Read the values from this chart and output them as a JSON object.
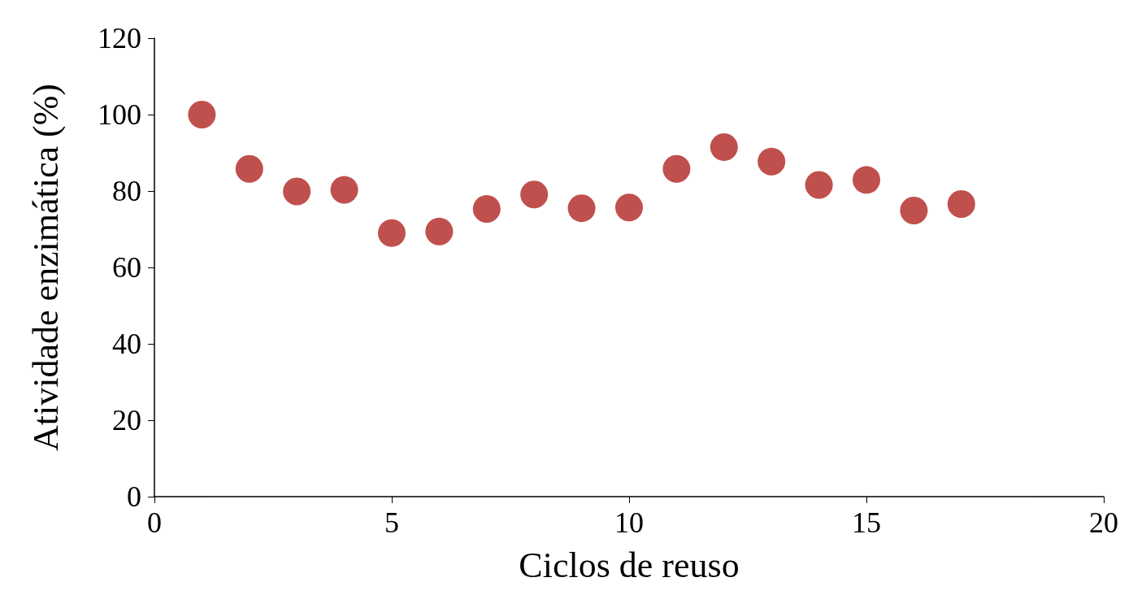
{
  "chart_data": {
    "type": "scatter",
    "xlabel": "Ciclos de reuso",
    "ylabel": "Atividade enzimática (%)",
    "x": [
      1,
      2,
      3,
      4,
      5,
      6,
      7,
      8,
      9,
      10,
      11,
      12,
      13,
      14,
      15,
      16,
      17
    ],
    "series": [
      {
        "color": "#c0504d",
        "values": [
          100,
          85.8,
          79.9,
          80.3,
          69.0,
          69.4,
          75.3,
          79.1,
          75.5,
          75.7,
          85.8,
          91.5,
          87.7,
          81.6,
          82.9,
          74.9,
          76.6
        ]
      }
    ],
    "xlim": [
      0,
      20
    ],
    "xticks": [
      0,
      5,
      10,
      15,
      20
    ],
    "ylim": [
      0,
      120
    ],
    "yticks": [
      0,
      20,
      40,
      60,
      80,
      100,
      120
    ],
    "marker": "circle"
  }
}
